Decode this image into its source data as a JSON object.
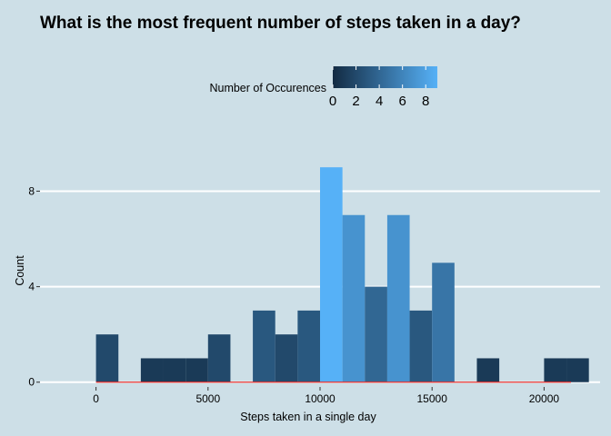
{
  "chart_data": {
    "type": "bar",
    "title": "What is the most frequent number of steps taken in a day?",
    "xlabel": "Steps taken in a single day",
    "ylabel": "Count",
    "bin_width": 1000,
    "bins_start": [
      0,
      1000,
      2000,
      3000,
      4000,
      5000,
      6000,
      7000,
      8000,
      9000,
      10000,
      11000,
      12000,
      13000,
      14000,
      15000,
      16000,
      17000,
      18000,
      19000,
      20000,
      21000
    ],
    "values": [
      2,
      0,
      1,
      1,
      1,
      2,
      0,
      3,
      2,
      3,
      9,
      7,
      4,
      7,
      3,
      5,
      0,
      1,
      0,
      0,
      1,
      1
    ],
    "xlim": [
      -2500,
      22500
    ],
    "ylim": [
      -0.2,
      10.3
    ],
    "x_ticks": [
      0,
      5000,
      10000,
      15000,
      20000
    ],
    "x_tick_labels": [
      "0",
      "5000",
      "10000",
      "15000",
      "20000"
    ],
    "y_ticks": [
      0,
      4,
      8
    ],
    "y_tick_labels": [
      "0",
      "4",
      "8"
    ],
    "legend": {
      "title": "Number of Occurences",
      "placement": "top-center",
      "ticks": [
        "0",
        "2",
        "4",
        "6",
        "8"
      ],
      "range": [
        0,
        9
      ],
      "color_low": "#132b43",
      "color_high": "#56b1f7"
    },
    "reference_line": {
      "y": 0,
      "x_from": 0,
      "x_to": 21200,
      "color": "#e8302e"
    },
    "grid": {
      "horizontal": true,
      "vertical": false,
      "color": "#ffffff"
    },
    "background": "#cddfe7"
  }
}
